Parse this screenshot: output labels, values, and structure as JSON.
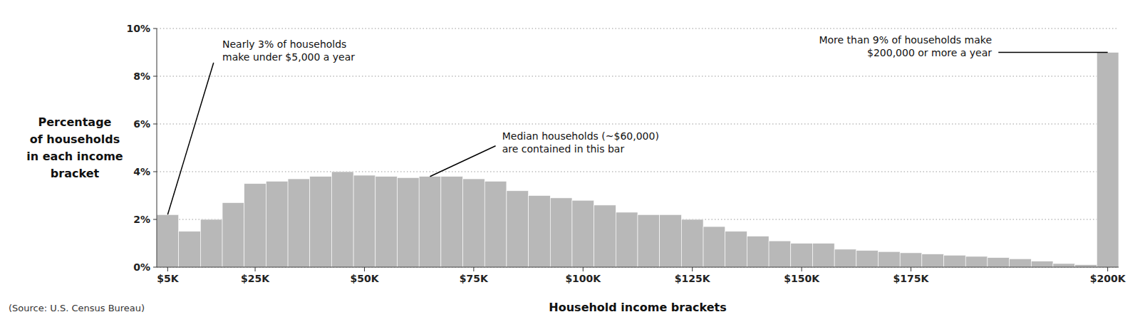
{
  "chart_data": {
    "type": "bar",
    "categories": [
      "$5K",
      null,
      null,
      null,
      "$25K",
      null,
      null,
      null,
      null,
      "$50K",
      null,
      null,
      null,
      null,
      "$75K",
      null,
      null,
      null,
      null,
      "$100K",
      null,
      null,
      null,
      null,
      "$125K",
      null,
      null,
      null,
      null,
      "$150K",
      null,
      null,
      null,
      null,
      "$175K",
      null,
      null,
      null,
      null,
      null,
      null,
      null,
      null,
      "$200K"
    ],
    "values": [
      2.2,
      1.5,
      2.0,
      2.7,
      3.5,
      3.6,
      3.7,
      3.8,
      4.0,
      3.85,
      3.8,
      3.75,
      3.8,
      3.8,
      3.7,
      3.6,
      3.2,
      3.0,
      2.9,
      2.8,
      2.6,
      2.3,
      2.2,
      2.2,
      2.0,
      1.7,
      1.5,
      1.3,
      1.1,
      1.0,
      1.0,
      0.75,
      0.7,
      0.65,
      0.6,
      0.55,
      0.5,
      0.45,
      0.4,
      0.35,
      0.25,
      0.15,
      0.1,
      9.0
    ],
    "color": "#b8b8b8",
    "x_label": "Household income brackets",
    "y_label": "Percentage\nof households\nin each income\nbracket",
    "source": "(Source: U.S. Census Bureau)",
    "annotations": [
      "Nearly 3% of households\nmake under $5,000 a year",
      "More than 9% of households make\n$200,000 or more a year",
      "Median households (~$60,000)\nare contained in this bar"
    ],
    "ylim": [
      0,
      10
    ],
    "yticks": [
      {
        "value": 0,
        "label": "0%"
      },
      {
        "value": 2,
        "label": "2%"
      },
      {
        "value": 4,
        "label": "4%"
      },
      {
        "value": 6,
        "label": "6%"
      },
      {
        "value": 8,
        "label": "8%"
      },
      {
        "value": 10,
        "label": "10%"
      }
    ],
    "grid": true
  }
}
